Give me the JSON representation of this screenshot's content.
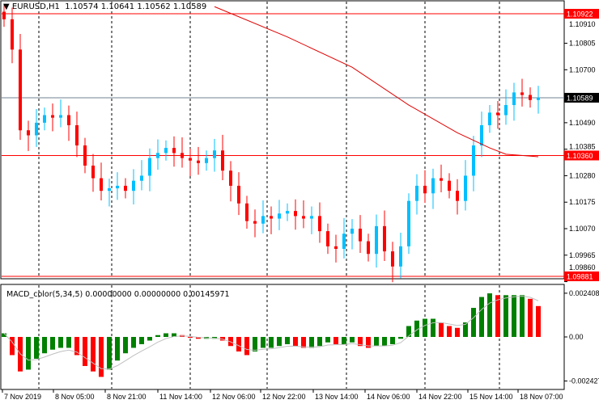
{
  "header": {
    "symbol": "EURUSD,H1",
    "ohlc": "1.10574 1.10641 1.10562 1.10589"
  },
  "macd_header": "MACD_color(5,34,5) 0.00000000 0.00000000 0.00145971",
  "colors": {
    "bull": "#00bfff",
    "bear": "#ff0000",
    "ma": "#e00000",
    "hist_up": "#008000",
    "hist_down": "#ff0000",
    "signal": "#c0c0c0",
    "price_line": "#708090"
  },
  "chart_data": [
    {
      "type": "candlestick",
      "title": "EURUSD,H1",
      "ylim": [
        1.0986,
        1.1096
      ],
      "price_ticks": [
        "1.10910",
        "1.10805",
        "1.10700",
        "1.10490",
        "1.10385",
        "1.10280",
        "1.10175",
        "1.10070",
        "1.09965",
        "1.09860"
      ],
      "level_labels": {
        "high": "1.10922",
        "current": "1.10589",
        "mid": "1.10360",
        "low": "1.09881"
      },
      "closes": [
        1.109,
        1.1078,
        1.1046,
        1.1044,
        1.1049,
        1.1052,
        1.1051,
        1.1052,
        1.1048,
        1.104,
        1.1032,
        1.1027,
        1.1022,
        1.1023,
        1.1024,
        1.1022,
        1.1026,
        1.1028,
        1.1035,
        1.1037,
        1.1039,
        1.1037,
        1.1035,
        1.1034,
        1.1033,
        1.1035,
        1.1038,
        1.103,
        1.1024,
        1.1017,
        1.101,
        1.1009,
        1.1012,
        1.1011,
        1.1013,
        1.1014,
        1.1012,
        1.1011,
        1.1012,
        1.1006,
        1.1,
        1.0999,
        1.1005,
        1.1007,
        1.1002,
        1.0997,
        1.1008,
        1.0998,
        1.0992,
        1.1,
        1.1018,
        1.1024,
        1.1021,
        1.1027,
        1.1026,
        1.1022,
        1.1018,
        1.1028,
        1.104,
        1.1048,
        1.1053,
        1.1052,
        1.1056,
        1.1061,
        1.106,
        1.1058,
        1.1059
      ],
      "moving_average": [
        [
          26,
          1.1095
        ],
        [
          35,
          1.1083
        ],
        [
          43,
          1.1071
        ],
        [
          50,
          1.1056
        ],
        [
          56,
          1.1045
        ],
        [
          60,
          1.1039
        ],
        [
          62,
          1.10365
        ],
        [
          66,
          1.10355
        ]
      ],
      "time_labels": [
        "7 Nov 2019",
        "8 Nov 05:00",
        "8 Nov 21:00",
        "11 Nov 14:00",
        "12 Nov 06:00",
        "12 Nov 22:00",
        "13 Nov 14:00",
        "14 Nov 06:00",
        "14 Nov 22:00",
        "15 Nov 14:00",
        "18 Nov 07:00"
      ]
    },
    {
      "type": "bar",
      "title": "MACD_color(5,34,5)",
      "ylim": [
        -0.002427,
        0.002408
      ],
      "ticks": [
        "0.0024082",
        "0.00",
        "-0.002427"
      ],
      "histogram": [
        0.0002,
        -0.001,
        -0.0019,
        -0.0018,
        -0.0012,
        -0.0009,
        -0.0007,
        -0.0006,
        -0.0006,
        -0.001,
        -0.0016,
        -0.0019,
        -0.0022,
        -0.0018,
        -0.0013,
        -0.0009,
        -0.0006,
        -0.0004,
        -0.0002,
        0.0001,
        0.0002,
        0.0002,
        0.0001,
        0,
        -0.0001,
        -0.0001,
        -0.0001,
        -0.0002,
        -0.0005,
        -0.0008,
        -0.001,
        -0.0008,
        -0.0006,
        -0.0006,
        -0.0005,
        -0.0004,
        -0.0005,
        -0.0006,
        -0.0006,
        -0.0005,
        -0.0003,
        -0.0004,
        -0.0004,
        -0.0003,
        -0.0005,
        -0.0006,
        -0.0005,
        -0.0005,
        -0.0004,
        -0.0001,
        0.0006,
        0.0009,
        0.001,
        0.001,
        0.0008,
        0.0006,
        0.0005,
        0.0008,
        0.0016,
        0.0022,
        0.0024,
        0.0023,
        0.0023,
        0.0023,
        0.0023,
        0.0021,
        0.0017
      ]
    }
  ]
}
